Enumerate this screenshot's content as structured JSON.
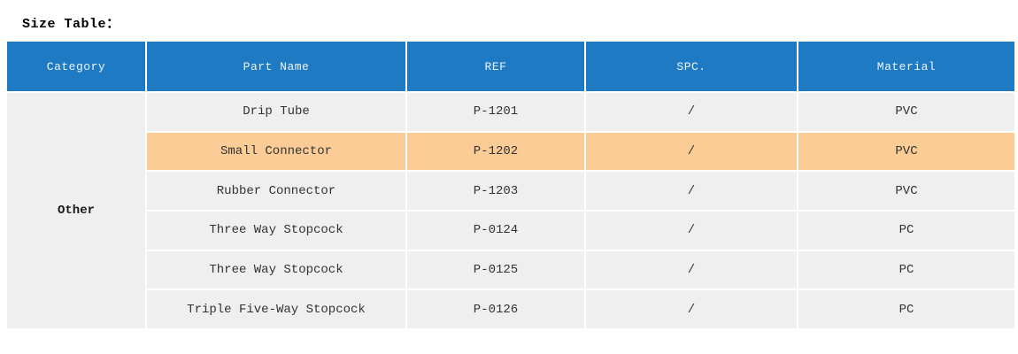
{
  "page": {
    "title": "Size Table：",
    "background": "#ffffff"
  },
  "table": {
    "columns": [
      "Category",
      "Part Name",
      "REF",
      "SPC.",
      "Material"
    ],
    "category": "Other",
    "rows": [
      {
        "part_name": "Drip Tube",
        "ref": "P-1201",
        "spc": "/",
        "material": "PVC",
        "highlighted": false
      },
      {
        "part_name": "Small Connector",
        "ref": "P-1202",
        "spc": "/",
        "material": "PVC",
        "highlighted": true
      },
      {
        "part_name": "Rubber Connector",
        "ref": "P-1203",
        "spc": "/",
        "material": "PVC",
        "highlighted": false
      },
      {
        "part_name": "Three Way Stopcock",
        "ref": "P-0124",
        "spc": "/",
        "material": "PC",
        "highlighted": false
      },
      {
        "part_name": "Three Way Stopcock",
        "ref": "P-0125",
        "spc": "/",
        "material": "PC",
        "highlighted": false
      },
      {
        "part_name": "Triple Five-Way Stopcock",
        "ref": "P-0126",
        "spc": "/",
        "material": "PC",
        "highlighted": false
      }
    ],
    "colors": {
      "header_bg": "#1e7ac2",
      "header_text": "#eef4fb",
      "row_bg": "#efefef",
      "highlight_bg": "#fbcc96",
      "cell_text": "#333333",
      "page_bg": "#ffffff"
    }
  }
}
